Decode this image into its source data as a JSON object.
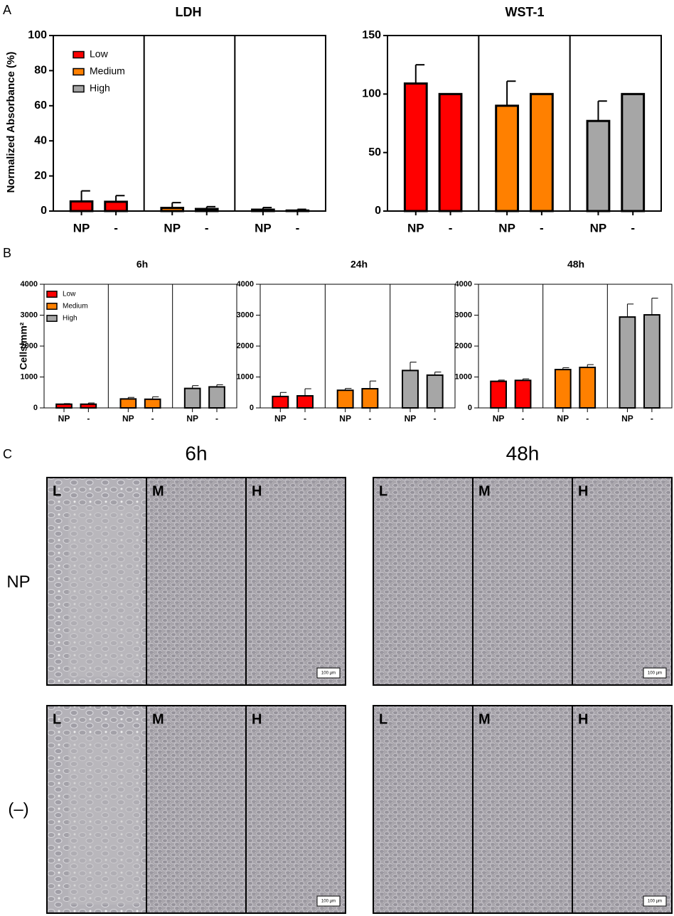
{
  "chart_data": [
    {
      "type": "bar",
      "title": "LDH",
      "ylabel": "Normalized Absorbance (%)",
      "categories": [
        "NP",
        "-"
      ],
      "ylim": [
        0,
        100
      ],
      "yticks": [
        0,
        20,
        40,
        60,
        80,
        100
      ],
      "legend": "upper left",
      "series": [
        {
          "name": "Low",
          "color": "#ff0000",
          "values": [
            5.5,
            5.3
          ],
          "errors": [
            6,
            3.5
          ]
        },
        {
          "name": "Medium",
          "color": "#ff8000",
          "values": [
            1.8,
            1.2
          ],
          "errors": [
            3,
            1.3
          ]
        },
        {
          "name": "High",
          "color": "#a6a6a6",
          "values": [
            0.8,
            0.3
          ],
          "errors": [
            1.2,
            0.7
          ]
        }
      ]
    },
    {
      "type": "bar",
      "title": "WST-1",
      "categories": [
        "NP",
        "-"
      ],
      "ylim": [
        0,
        150
      ],
      "yticks": [
        0,
        50,
        100,
        150
      ],
      "series": [
        {
          "name": "Low",
          "color": "#ff0000",
          "values": [
            109,
            100
          ],
          "errors": [
            16,
            0
          ]
        },
        {
          "name": "Medium",
          "color": "#ff8000",
          "values": [
            90,
            100
          ],
          "errors": [
            21,
            0
          ]
        },
        {
          "name": "High",
          "color": "#a6a6a6",
          "values": [
            77,
            100
          ],
          "errors": [
            17,
            0
          ]
        }
      ]
    },
    {
      "type": "bar",
      "title": "6h",
      "ylabel": "Cells/mm²",
      "categories": [
        "NP",
        "-"
      ],
      "ylim": [
        0,
        4000
      ],
      "yticks": [
        0,
        1000,
        2000,
        3000,
        4000
      ],
      "legend": "upper left",
      "series": [
        {
          "name": "Low",
          "color": "#ff0000",
          "values": [
            120,
            120
          ],
          "errors": [
            20,
            40
          ]
        },
        {
          "name": "Medium",
          "color": "#ff8000",
          "values": [
            290,
            280
          ],
          "errors": [
            50,
            80
          ]
        },
        {
          "name": "High",
          "color": "#a6a6a6",
          "values": [
            630,
            680
          ],
          "errors": [
            90,
            70
          ]
        }
      ]
    },
    {
      "type": "bar",
      "title": "24h",
      "categories": [
        "NP",
        "-"
      ],
      "ylim": [
        0,
        4000
      ],
      "yticks": [
        0,
        1000,
        2000,
        3000,
        4000
      ],
      "series": [
        {
          "name": "Low",
          "color": "#ff0000",
          "values": [
            370,
            390
          ],
          "errors": [
            130,
            230
          ]
        },
        {
          "name": "Medium",
          "color": "#ff8000",
          "values": [
            570,
            620
          ],
          "errors": [
            60,
            250
          ]
        },
        {
          "name": "High",
          "color": "#a6a6a6",
          "values": [
            1210,
            1060
          ],
          "errors": [
            270,
            100
          ]
        }
      ]
    },
    {
      "type": "bar",
      "title": "48h",
      "categories": [
        "NP",
        "-"
      ],
      "ylim": [
        0,
        4000
      ],
      "yticks": [
        0,
        1000,
        2000,
        3000,
        4000
      ],
      "series": [
        {
          "name": "Low",
          "color": "#ff0000",
          "values": [
            860,
            890
          ],
          "errors": [
            40,
            50
          ]
        },
        {
          "name": "Medium",
          "color": "#ff8000",
          "values": [
            1240,
            1310
          ],
          "errors": [
            60,
            90
          ]
        },
        {
          "name": "High",
          "color": "#a6a6a6",
          "values": [
            2940,
            3010
          ],
          "errors": [
            420,
            540
          ]
        }
      ]
    }
  ],
  "panel_labels": [
    "A",
    "B",
    "C"
  ],
  "micrographs": {
    "times": [
      "6h",
      "48h"
    ],
    "rows": [
      "NP",
      "(–)"
    ],
    "tiles": [
      "L",
      "M",
      "H"
    ],
    "scale_bar": "100 µm"
  }
}
